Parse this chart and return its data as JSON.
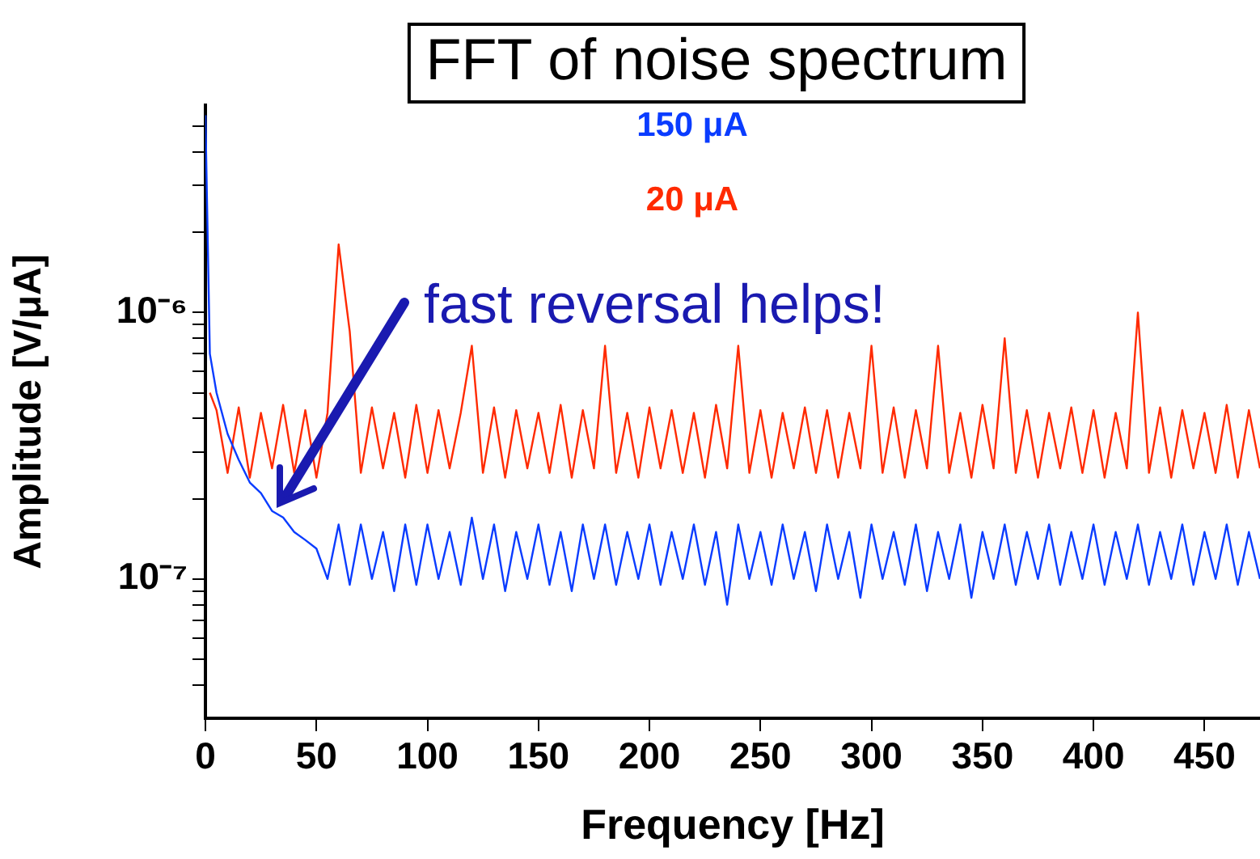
{
  "chart_data": {
    "type": "line",
    "title": "FFT of noise spectrum",
    "xlabel": "Frequency [Hz]",
    "ylabel": "Amplitude [V/μA]",
    "log": "y",
    "grid": false,
    "legend": "top",
    "marker": "none",
    "line_style": "solid",
    "xlim": [
      0,
      475
    ],
    "xticks": [
      0,
      50,
      100,
      150,
      200,
      250,
      300,
      350,
      400,
      450
    ],
    "ylim": [
      3e-08,
      6e-06
    ],
    "yticks": [
      {
        "value": 4e-08,
        "label": null
      },
      {
        "value": 5e-08,
        "label": null
      },
      {
        "value": 6e-08,
        "label": null
      },
      {
        "value": 7e-08,
        "label": null
      },
      {
        "value": 8e-08,
        "label": null
      },
      {
        "value": 9e-08,
        "label": null
      },
      {
        "value": 1e-07,
        "label": "10⁻⁷"
      },
      {
        "value": 2e-07,
        "label": null
      },
      {
        "value": 3e-07,
        "label": null
      },
      {
        "value": 4e-07,
        "label": null
      },
      {
        "value": 5e-07,
        "label": null
      },
      {
        "value": 6e-07,
        "label": null
      },
      {
        "value": 7e-07,
        "label": null
      },
      {
        "value": 8e-07,
        "label": null
      },
      {
        "value": 9e-07,
        "label": null
      },
      {
        "value": 1e-06,
        "label": "10⁻⁶"
      },
      {
        "value": 2e-06,
        "label": null
      },
      {
        "value": 3e-06,
        "label": null
      },
      {
        "value": 4e-06,
        "label": null
      },
      {
        "value": 5e-06,
        "label": null
      }
    ],
    "annotations": [
      "fast reversal helps!"
    ],
    "series": [
      {
        "name": "150 μA",
        "color": "#0a3cff",
        "x": [
          0,
          2,
          5,
          10,
          15,
          20,
          25,
          30,
          35,
          40,
          45,
          50,
          55,
          60,
          65,
          70,
          75,
          80,
          85,
          90,
          95,
          100,
          105,
          110,
          115,
          120,
          125,
          130,
          135,
          140,
          145,
          150,
          155,
          160,
          165,
          170,
          175,
          180,
          185,
          190,
          195,
          200,
          205,
          210,
          215,
          220,
          225,
          230,
          235,
          240,
          245,
          250,
          255,
          260,
          265,
          270,
          275,
          280,
          285,
          290,
          295,
          300,
          305,
          310,
          315,
          320,
          325,
          330,
          335,
          340,
          345,
          350,
          355,
          360,
          365,
          370,
          375,
          380,
          385,
          390,
          395,
          400,
          405,
          410,
          415,
          420,
          425,
          430,
          435,
          440,
          445,
          450,
          455,
          460,
          465,
          470,
          475
        ],
        "values": [
          5.5e-06,
          7e-07,
          5e-07,
          3.5e-07,
          2.8e-07,
          2.3e-07,
          2.1e-07,
          1.8e-07,
          1.7e-07,
          1.5e-07,
          1.4e-07,
          1.3e-07,
          1e-07,
          1.6e-07,
          9.5e-08,
          1.6e-07,
          1e-07,
          1.5e-07,
          9e-08,
          1.6e-07,
          9.5e-08,
          1.6e-07,
          1e-07,
          1.5e-07,
          9.5e-08,
          1.7e-07,
          1e-07,
          1.6e-07,
          9e-08,
          1.5e-07,
          1e-07,
          1.6e-07,
          9.5e-08,
          1.5e-07,
          9e-08,
          1.6e-07,
          1e-07,
          1.6e-07,
          9.5e-08,
          1.5e-07,
          1e-07,
          1.6e-07,
          9.5e-08,
          1.5e-07,
          1e-07,
          1.6e-07,
          9.5e-08,
          1.5e-07,
          8e-08,
          1.6e-07,
          1e-07,
          1.5e-07,
          9.5e-08,
          1.6e-07,
          1e-07,
          1.5e-07,
          9e-08,
          1.6e-07,
          1e-07,
          1.5e-07,
          8.5e-08,
          1.6e-07,
          1e-07,
          1.5e-07,
          9.5e-08,
          1.6e-07,
          9e-08,
          1.5e-07,
          1e-07,
          1.6e-07,
          8.5e-08,
          1.5e-07,
          1e-07,
          1.6e-07,
          9.5e-08,
          1.5e-07,
          1e-07,
          1.6e-07,
          9.5e-08,
          1.5e-07,
          1e-07,
          1.6e-07,
          9.5e-08,
          1.5e-07,
          1e-07,
          1.6e-07,
          9.5e-08,
          1.5e-07,
          1e-07,
          1.6e-07,
          9.5e-08,
          1.5e-07,
          1e-07,
          1.6e-07,
          9.5e-08,
          1.5e-07,
          1e-07
        ]
      },
      {
        "name": "20 μA",
        "color": "#ff2a00",
        "x": [
          2,
          5,
          10,
          15,
          20,
          25,
          30,
          35,
          40,
          45,
          50,
          55,
          60,
          65,
          70,
          75,
          80,
          85,
          90,
          95,
          100,
          105,
          110,
          115,
          120,
          125,
          130,
          135,
          140,
          145,
          150,
          155,
          160,
          165,
          170,
          175,
          180,
          185,
          190,
          195,
          200,
          205,
          210,
          215,
          220,
          225,
          230,
          235,
          240,
          245,
          250,
          255,
          260,
          265,
          270,
          275,
          280,
          285,
          290,
          295,
          300,
          305,
          310,
          315,
          320,
          325,
          330,
          335,
          340,
          345,
          350,
          355,
          360,
          365,
          370,
          375,
          380,
          385,
          390,
          395,
          400,
          405,
          410,
          415,
          420,
          425,
          430,
          435,
          440,
          445,
          450,
          455,
          460,
          465,
          470,
          475
        ],
        "values": [
          5e-07,
          4.3e-07,
          2.5e-07,
          4.4e-07,
          2.4e-07,
          4.2e-07,
          2.6e-07,
          4.5e-07,
          2.5e-07,
          4.3e-07,
          2.4e-07,
          4.2e-07,
          1.8e-06,
          8.5e-07,
          2.5e-07,
          4.4e-07,
          2.6e-07,
          4.2e-07,
          2.4e-07,
          4.5e-07,
          2.5e-07,
          4.3e-07,
          2.6e-07,
          4.2e-07,
          7.5e-07,
          2.5e-07,
          4.4e-07,
          2.4e-07,
          4.3e-07,
          2.6e-07,
          4.2e-07,
          2.5e-07,
          4.5e-07,
          2.4e-07,
          4.3e-07,
          2.6e-07,
          7.5e-07,
          2.5e-07,
          4.2e-07,
          2.4e-07,
          4.4e-07,
          2.6e-07,
          4.3e-07,
          2.5e-07,
          4.2e-07,
          2.4e-07,
          4.5e-07,
          2.6e-07,
          7.5e-07,
          2.5e-07,
          4.3e-07,
          2.4e-07,
          4.2e-07,
          2.6e-07,
          4.4e-07,
          2.5e-07,
          4.3e-07,
          2.4e-07,
          4.2e-07,
          2.6e-07,
          7.5e-07,
          2.5e-07,
          4.4e-07,
          2.4e-07,
          4.3e-07,
          2.6e-07,
          7.5e-07,
          2.5e-07,
          4.2e-07,
          2.4e-07,
          4.5e-07,
          2.6e-07,
          8e-07,
          2.5e-07,
          4.3e-07,
          2.4e-07,
          4.2e-07,
          2.6e-07,
          4.4e-07,
          2.5e-07,
          4.3e-07,
          2.4e-07,
          4.2e-07,
          2.6e-07,
          1e-06,
          2.5e-07,
          4.4e-07,
          2.4e-07,
          4.3e-07,
          2.6e-07,
          4.2e-07,
          2.5e-07,
          4.5e-07,
          2.4e-07,
          4.3e-07,
          2.6e-07
        ]
      }
    ]
  }
}
